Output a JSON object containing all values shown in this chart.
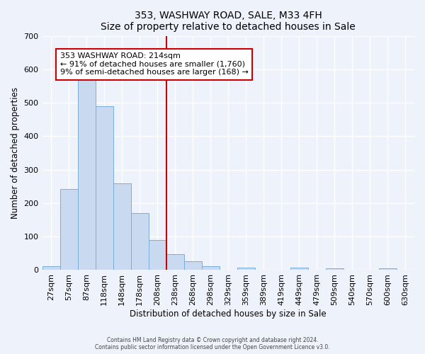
{
  "title": "353, WASHWAY ROAD, SALE, M33 4FH",
  "subtitle": "Size of property relative to detached houses in Sale",
  "xlabel": "Distribution of detached houses by size in Sale",
  "ylabel": "Number of detached properties",
  "bar_labels": [
    "27sqm",
    "57sqm",
    "87sqm",
    "118sqm",
    "148sqm",
    "178sqm",
    "208sqm",
    "238sqm",
    "268sqm",
    "298sqm",
    "329sqm",
    "359sqm",
    "389sqm",
    "419sqm",
    "449sqm",
    "479sqm",
    "509sqm",
    "540sqm",
    "570sqm",
    "600sqm",
    "630sqm"
  ],
  "bar_values": [
    12,
    243,
    572,
    490,
    258,
    170,
    90,
    48,
    27,
    12,
    0,
    8,
    0,
    0,
    8,
    0,
    5,
    0,
    0,
    5,
    0
  ],
  "bar_color": "#c9d9f0",
  "bar_edge_color": "#7aaed8",
  "property_line_x": 6.5,
  "property_line_color": "#cc0000",
  "annotation_text": "353 WASHWAY ROAD: 214sqm\n← 91% of detached houses are smaller (1,760)\n9% of semi-detached houses are larger (168) →",
  "annotation_box_color": "#ffffff",
  "annotation_box_edge": "#cc0000",
  "ylim": [
    0,
    700
  ],
  "yticks": [
    0,
    100,
    200,
    300,
    400,
    500,
    600,
    700
  ],
  "footer_line1": "Contains HM Land Registry data © Crown copyright and database right 2024.",
  "footer_line2": "Contains public sector information licensed under the Open Government Licence v3.0.",
  "bg_color": "#eef2fb",
  "grid_color": "#ffffff"
}
